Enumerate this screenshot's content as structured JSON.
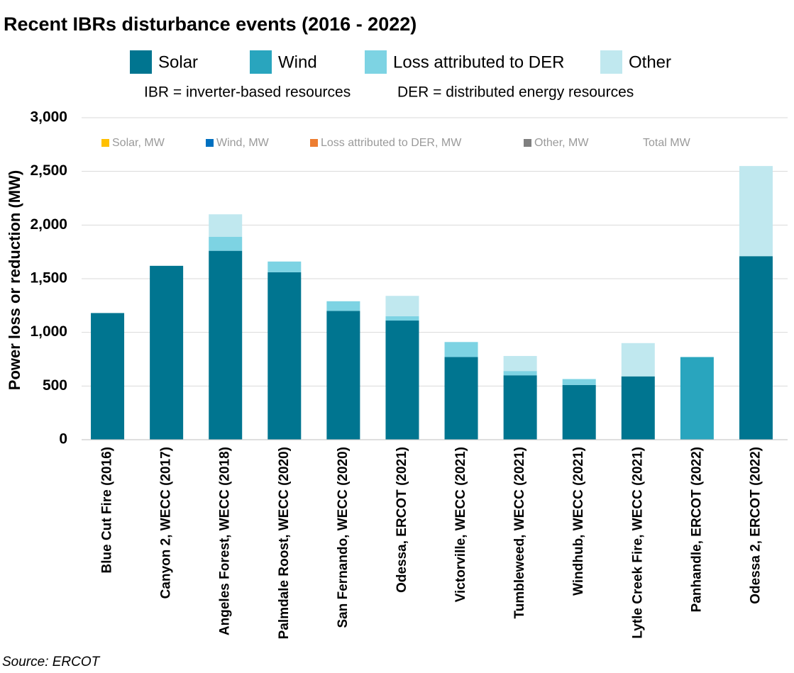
{
  "chart_data": {
    "type": "stacked_bar",
    "title": "Recent IBRs disturbance events (2016 - 2022)",
    "notes": [
      "IBR = inverter-based resources",
      "DER = distributed energy resources"
    ],
    "y_label": "Power loss or reduction (MW)",
    "source": "Source: ERCOT",
    "categories": [
      "Blue Cut Fire (2016)",
      "Canyon 2, WECC (2017)",
      "Angeles Forest, WECC (2018)",
      "Palmdale Roost, WECC (2020)",
      "San Fernando, WECC (2020)",
      "Odessa, ERCOT (2021)",
      "Victorville, WECC (2021)",
      "Tumbleweed, WECC (2021)",
      "Windhub, WECC (2021)",
      "Lytle Creek Fire, WECC (2021)",
      "Panhandle, ERCOT (2022)",
      "Odessa 2, ERCOT (2022)"
    ],
    "series": [
      {
        "name": "Solar",
        "color": "#007590",
        "values": [
          1180,
          1620,
          1760,
          1560,
          1200,
          1110,
          770,
          600,
          510,
          590,
          0,
          1710
        ]
      },
      {
        "name": "Wind",
        "color": "#29a5be",
        "values": [
          0,
          0,
          0,
          0,
          0,
          0,
          0,
          0,
          0,
          0,
          770,
          0
        ]
      },
      {
        "name": "Loss attributed to DER",
        "color": "#7dd3e3",
        "values": [
          0,
          0,
          130,
          100,
          90,
          40,
          140,
          40,
          55,
          0,
          0,
          0
        ]
      },
      {
        "name": "Other",
        "color": "#c0e8ef",
        "values": [
          0,
          0,
          210,
          0,
          0,
          190,
          0,
          140,
          0,
          310,
          0,
          840
        ]
      }
    ],
    "overlay_legend": [
      {
        "name": "Solar, MW",
        "color": "#ffc000"
      },
      {
        "name": "Wind, MW",
        "color": "#0070c0"
      },
      {
        "name": "Loss attributed to DER, MW",
        "color": "#ed7d31"
      },
      {
        "name": "Other, MW",
        "color": "#7f7f7f"
      },
      {
        "name": "Total MW"
      }
    ],
    "ylim": [
      0,
      3000
    ],
    "yticks": [
      0,
      500,
      {
        "value": 1000,
        "label": "1,000"
      },
      {
        "value": 1500,
        "label": "1,500"
      },
      {
        "value": 2000,
        "label": "2,000"
      },
      {
        "value": 2500,
        "label": "2,500"
      },
      {
        "value": 3000,
        "label": "3,000"
      }
    ],
    "grid": true
  }
}
